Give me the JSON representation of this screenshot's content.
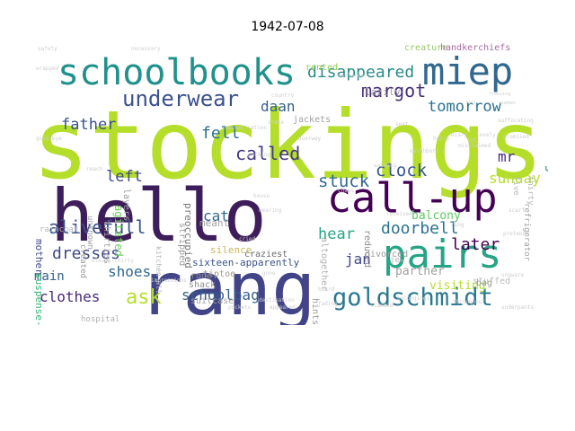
{
  "title": "1942-07-08",
  "words": [
    {
      "text": "stockings",
      "color": "#b5de2b"
    },
    {
      "text": "hello",
      "color": "#3e1e5a"
    },
    {
      "text": "rang",
      "color": "#414487"
    },
    {
      "text": "call-up",
      "color": "#440154"
    },
    {
      "text": "pairs",
      "color": "#26a485"
    },
    {
      "text": "schoolbooks",
      "color": "#21918c"
    },
    {
      "text": "miep",
      "color": "#31688e"
    },
    {
      "text": "goldschmidt",
      "color": "#2a788e"
    },
    {
      "text": "underwear",
      "color": "#3b528b"
    },
    {
      "text": "disappeared",
      "color": "#2a8a89"
    },
    {
      "text": "margot",
      "color": "#472d7b"
    },
    {
      "text": "daan",
      "color": "#355f8d"
    },
    {
      "text": "tomorrow",
      "color": "#2c728e"
    },
    {
      "text": "father",
      "color": "#3b528b"
    },
    {
      "text": "called",
      "color": "#443a83"
    },
    {
      "text": "fell",
      "color": "#2c728e"
    },
    {
      "text": "stuck",
      "color": "#31688e"
    },
    {
      "text": "clock",
      "color": "#39568c"
    },
    {
      "text": "mr",
      "color": "#482878"
    },
    {
      "text": "sunday",
      "color": "#b5de2b"
    },
    {
      "text": "living",
      "color": "#2a8a89"
    },
    {
      "text": "left",
      "color": "#3e4989"
    },
    {
      "text": "cat",
      "color": "#31688e"
    },
    {
      "text": "alivefull",
      "color": "#3b528b"
    },
    {
      "text": "hear",
      "color": "#26a485"
    },
    {
      "text": "doorbell",
      "color": "#2c728e"
    },
    {
      "text": "later",
      "color": "#440154"
    },
    {
      "text": "jan",
      "color": "#414487"
    },
    {
      "text": "dresses",
      "color": "#3e4989"
    },
    {
      "text": "shoes",
      "color": "#31688e"
    },
    {
      "text": "main",
      "color": "#355f8d"
    },
    {
      "text": "clothes",
      "color": "#482878"
    },
    {
      "text": "ask",
      "color": "#b5de2b"
    },
    {
      "text": "schoolbag",
      "color": "#355f8d"
    },
    {
      "text": "balcony",
      "color": "#5ec962"
    },
    {
      "text": "partner",
      "color": "#9e9e9e"
    },
    {
      "text": "visiting",
      "color": "#b5de2b"
    },
    {
      "text": "agitated",
      "color": "#6fcc5e"
    },
    {
      "text": "mother",
      "color": "#3e4989"
    },
    {
      "text": "suspense-all",
      "color": "#35b779"
    },
    {
      "text": "handkerchiefs",
      "color": "#ab69a2"
    },
    {
      "text": "creature",
      "color": "#9bc76f"
    },
    {
      "text": "rented",
      "color": "#8fd14f"
    },
    {
      "text": "lazily",
      "color": "#9f9f9f"
    },
    {
      "text": "jackets",
      "color": "#a0a0a0"
    },
    {
      "text": "layers",
      "color": "#9e9e9e"
    },
    {
      "text": "preoccupied",
      "color": "#7a7a7a"
    },
    {
      "text": "stripped",
      "color": "#9a9a9a"
    },
    {
      "text": "meant",
      "color": "#a0a0a0"
    },
    {
      "text": "silence",
      "color": "#c6b75d"
    },
    {
      "text": "rode",
      "color": "#8d8d8d"
    },
    {
      "text": "craziest",
      "color": "#6b6b6b"
    },
    {
      "text": "sixteen-apparently",
      "color": "#3b528b"
    },
    {
      "text": "tiptoe",
      "color": "#a09b8a"
    },
    {
      "text": "shack",
      "color": "#8f8f8f"
    },
    {
      "text": "kitchen-all",
      "color": "#b6b6b6"
    },
    {
      "text": "raincoat",
      "color": "#b9b9b9"
    },
    {
      "text": "hospital",
      "color": "#b0b0b0"
    },
    {
      "text": "suitcase",
      "color": "#a4a4a4"
    },
    {
      "text": "reduced",
      "color": "#8a8a8a"
    },
    {
      "text": "altogether",
      "color": "#b2b2b2"
    },
    {
      "text": "divorced",
      "color": "#9a9a9a"
    },
    {
      "text": "jew",
      "color": "#b2b2b2"
    },
    {
      "text": "stuffed",
      "color": "#bdbdbd"
    },
    {
      "text": "refrigerator",
      "color": "#a0a0a0"
    },
    {
      "text": "bag",
      "color": "#9d9d9d"
    },
    {
      "text": "thirties",
      "color": "#a5a5a5"
    },
    {
      "text": "unknown",
      "color": "#a0a0a0"
    },
    {
      "text": "created",
      "color": "#9a9a9a"
    },
    {
      "text": "hints",
      "color": "#9c9c9c"
    },
    {
      "text": "five",
      "color": "#b6b6b6"
    },
    {
      "text": "thirty",
      "color": "#b6b6b6"
    },
    {
      "text": "sudden",
      "color": "#cfcfcf"
    },
    {
      "text": "freezing",
      "color": "#cfcfcf"
    },
    {
      "text": "fill",
      "color": "#cfcfcf"
    },
    {
      "text": "declared",
      "color": "#cccccc"
    },
    {
      "text": "reach",
      "color": "#cccccc"
    },
    {
      "text": "country",
      "color": "#cfcfcf"
    },
    {
      "text": "shake",
      "color": "#cfcfcf"
    },
    {
      "text": "doorway",
      "color": "#cccccc"
    },
    {
      "text": "walking",
      "color": "#cfcfcf"
    },
    {
      "text": "neighbors",
      "color": "#cccccc"
    },
    {
      "text": "unaware",
      "color": "#cfcfcf"
    },
    {
      "text": "heard",
      "color": "#cccccc"
    },
    {
      "text": "destination",
      "color": "#cfcfcf"
    },
    {
      "text": "pockets",
      "color": "#cccccc"
    },
    {
      "text": "belongings",
      "color": "#cfcfcf"
    },
    {
      "text": "underpants",
      "color": "#cccccc"
    },
    {
      "text": "throughout",
      "color": "#cfcfcf"
    },
    {
      "text": "appeared",
      "color": "#cccccc"
    },
    {
      "text": "fading",
      "color": "#cfcfcf"
    },
    {
      "text": "slammed",
      "color": "#cccccc"
    },
    {
      "text": "house",
      "color": "#cfcfcf"
    },
    {
      "text": "received",
      "color": "#cccccc"
    },
    {
      "text": "packing",
      "color": "#cfcfcf"
    },
    {
      "text": "good-bye",
      "color": "#cccccc"
    },
    {
      "text": "wrapped",
      "color": "#cfcfcf"
    },
    {
      "text": "safety",
      "color": "#cccccc"
    },
    {
      "text": "necessary",
      "color": "#cfcfcf"
    },
    {
      "text": "concentration",
      "color": "#cccccc"
    },
    {
      "text": "promised",
      "color": "#cfcfcf"
    },
    {
      "text": "suffocating",
      "color": "#cccccc"
    },
    {
      "text": "misclaimed",
      "color": "#cfcfcf"
    },
    {
      "text": "impressions",
      "color": "#cccccc"
    },
    {
      "text": "eleven-thirty",
      "color": "#cfcfcf"
    },
    {
      "text": "cried",
      "color": "#cccccc"
    },
    {
      "text": "diary",
      "color": "#cfcfcf"
    },
    {
      "text": "scarf",
      "color": "#cccccc"
    },
    {
      "text": "jot",
      "color": "#cfcfcf"
    },
    {
      "text": "sent",
      "color": "#cccccc"
    },
    {
      "text": "chaos",
      "color": "#cfcfcf"
    },
    {
      "text": "pretend",
      "color": "#cccccc"
    },
    {
      "text": "wearing",
      "color": "#cfcfcf"
    },
    {
      "text": "lovely",
      "color": "#cccccc"
    },
    {
      "text": "hurry",
      "color": "#cfcfcf"
    },
    {
      "text": "ring",
      "color": "#cccccc"
    },
    {
      "text": "gone",
      "color": "#cfcfcf"
    }
  ]
}
